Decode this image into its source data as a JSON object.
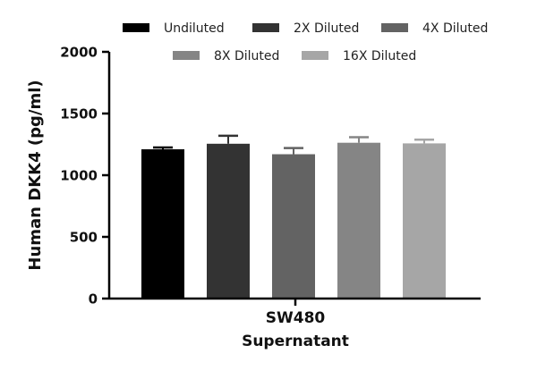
{
  "chart_data": {
    "type": "bar",
    "title": "",
    "ylabel": "Human DKK4 (pg/ml)",
    "category_lines": [
      "SW480",
      "Supernatant"
    ],
    "ylim": [
      0,
      2000
    ],
    "yticks": [
      0,
      500,
      1000,
      1500,
      2000
    ],
    "legend_position": "top",
    "grid": false,
    "error_bars": true,
    "series": [
      {
        "name": "Undiluted",
        "value": 1210,
        "error": 15,
        "color": "#000000"
      },
      {
        "name": "2X Diluted",
        "value": 1255,
        "error": 65,
        "color": "#333333"
      },
      {
        "name": "4X Diluted",
        "value": 1170,
        "error": 50,
        "color": "#636363"
      },
      {
        "name": "8X Diluted",
        "value": 1263,
        "error": 45,
        "color": "#858585"
      },
      {
        "name": "16X Diluted",
        "value": 1258,
        "error": 30,
        "color": "#a6a6a6"
      }
    ]
  }
}
